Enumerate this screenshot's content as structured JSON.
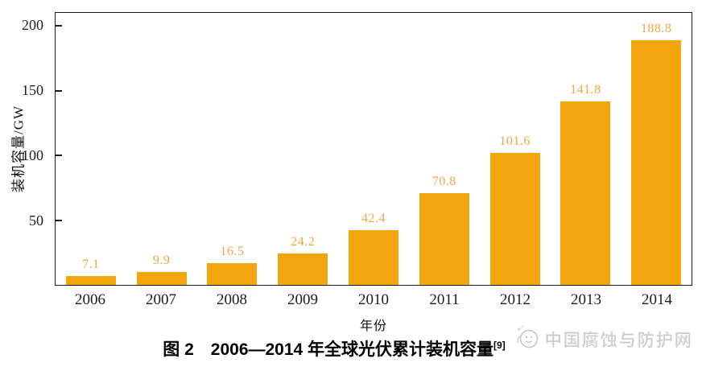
{
  "chart_data": {
    "type": "bar",
    "title": "图 2　2006—2014 年全球光伏累计装机容量",
    "title_reference": "[9]",
    "categories": [
      "2006",
      "2007",
      "2008",
      "2009",
      "2010",
      "2011",
      "2012",
      "2013",
      "2014"
    ],
    "values": [
      7.1,
      9.9,
      16.5,
      24.2,
      42.4,
      70.8,
      101.6,
      141.8,
      188.8
    ],
    "value_labels": [
      "7.1",
      "9.9",
      "16.5",
      "24.2",
      "42.4",
      "70.8",
      "101.6",
      "141.8",
      "188.8"
    ],
    "xlabel": "年份",
    "ylabel": "装机容量/GW",
    "yticks": [
      50,
      100,
      150,
      200
    ],
    "ylim": [
      0,
      210
    ],
    "grid": false,
    "legend": "none",
    "bar_color": "#F2A50C",
    "value_label_color": "#EFA643",
    "axis_color": "#1a1a1a",
    "tick_label_color": "#1c1c28"
  },
  "caption": {
    "text": "图 2　2006—2014 年全球光伏累计装机容量",
    "reference": "[9]"
  },
  "watermark": {
    "text": "中国腐蚀与防护网",
    "icon": "watermark-logo-icon"
  }
}
